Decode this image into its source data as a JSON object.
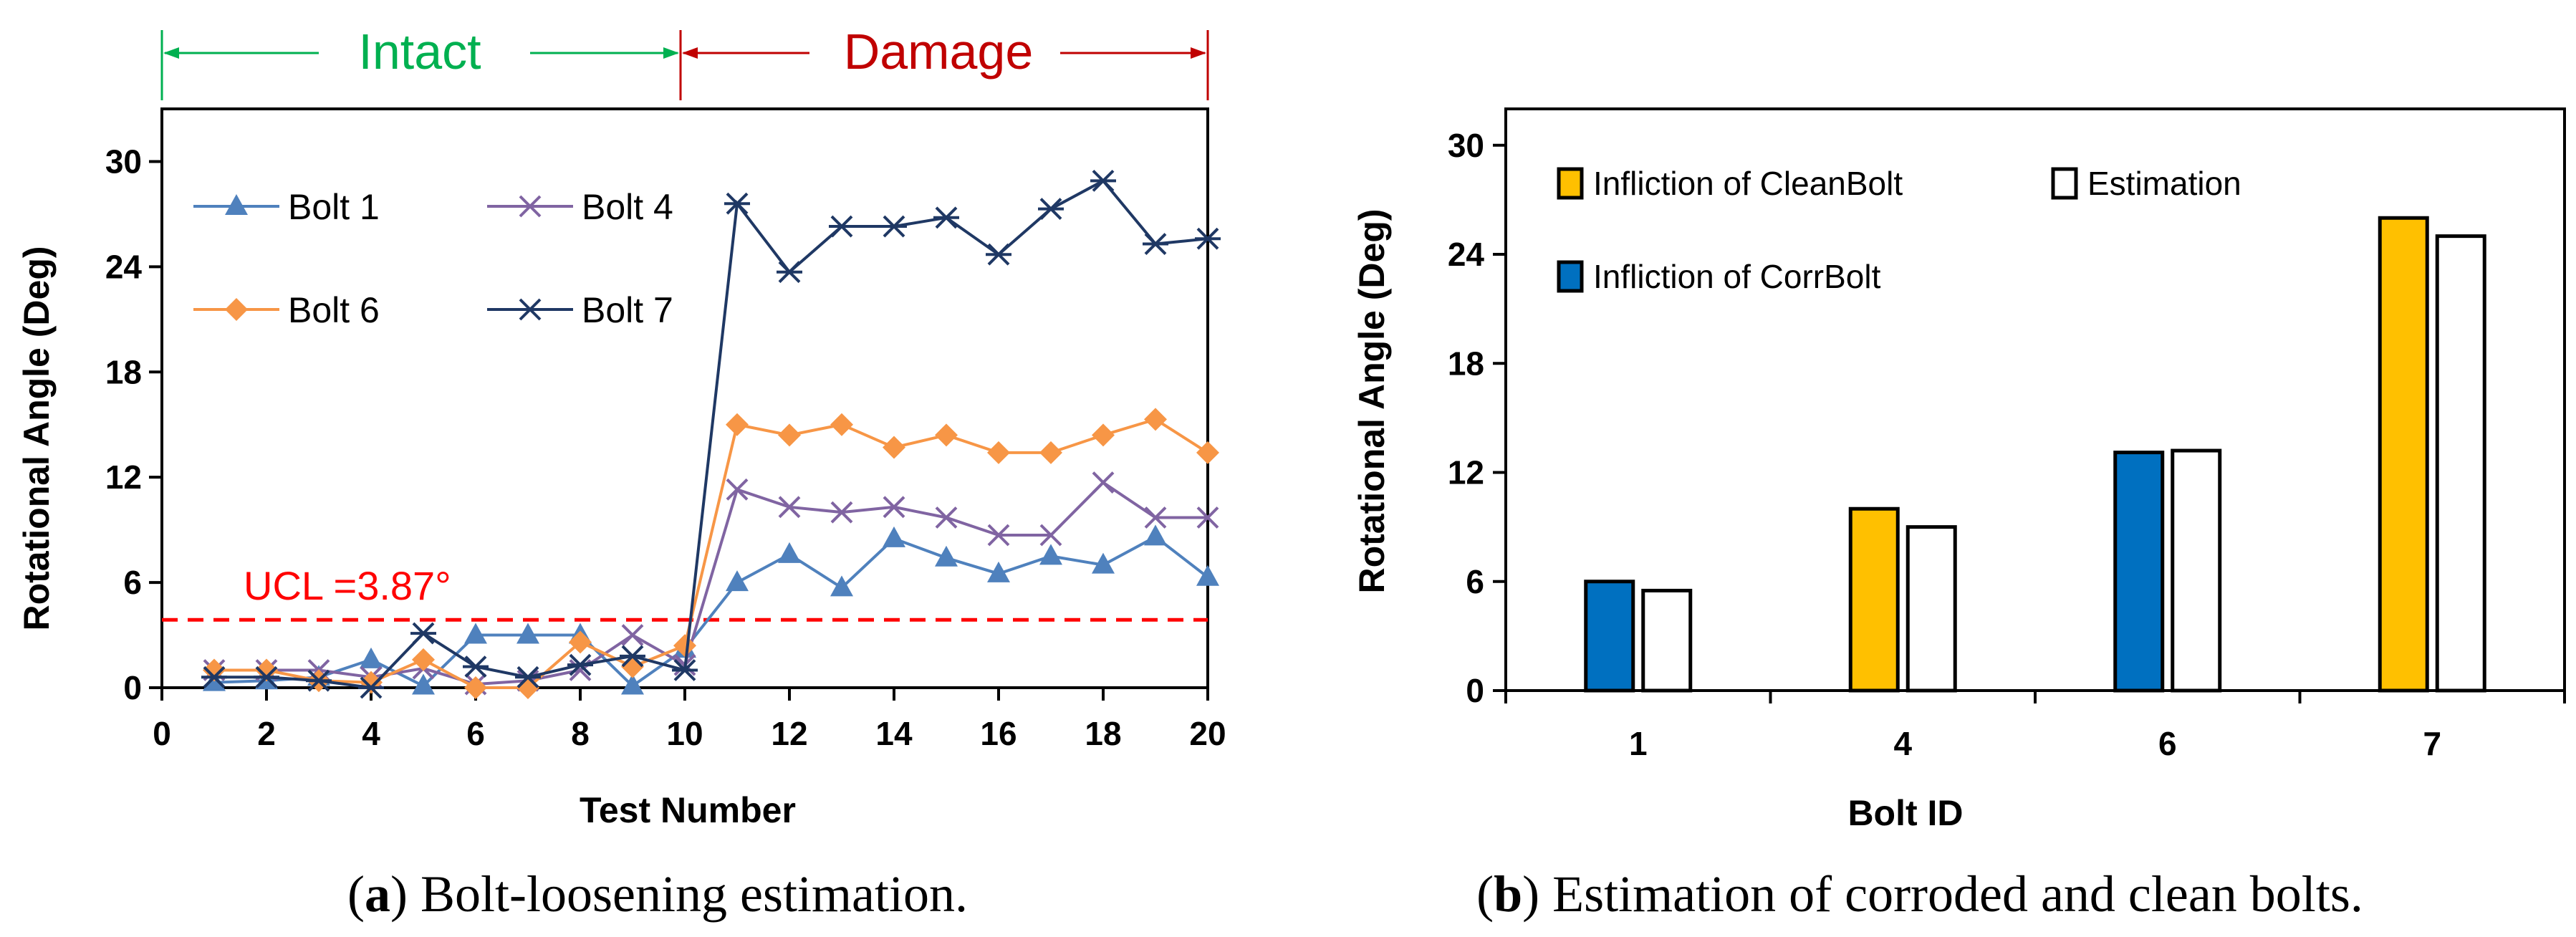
{
  "phases": {
    "intact_label": "Intact",
    "damage_label": "Damage",
    "intact_color": "#00b050",
    "damage_color": "#c00000"
  },
  "captions": {
    "a_letter": "a",
    "a_text": " Bolt-loosening estimation.",
    "b_letter": "b",
    "b_text": " Estimation of corroded and clean bolts."
  },
  "chart_data": [
    {
      "type": "line",
      "title": "",
      "xlabel": "Test Number",
      "ylabel": "Rotational Angle (Deg)",
      "xlim": [
        0,
        20
      ],
      "ylim": [
        0,
        33
      ],
      "xticks": [
        0,
        2,
        4,
        6,
        8,
        10,
        12,
        14,
        16,
        18,
        20
      ],
      "yticks": [
        0,
        6,
        12,
        18,
        24,
        30
      ],
      "grid": false,
      "legend_position": "top-left",
      "threshold": {
        "label": "UCL =3.87°",
        "value": 3.87,
        "color": "#ff0000"
      },
      "x": [
        1,
        2,
        3,
        4,
        5,
        6,
        7,
        8,
        9,
        10,
        11,
        12,
        13,
        14,
        15,
        16,
        17,
        18,
        19,
        20
      ],
      "series": [
        {
          "name": "Bolt 1",
          "marker": "triangle",
          "color": "#4f81bd",
          "values": [
            0.3,
            0.4,
            0.6,
            1.6,
            0.1,
            3.0,
            3.0,
            3.0,
            0.1,
            2.2,
            6.0,
            7.6,
            5.7,
            8.5,
            7.4,
            6.5,
            7.5,
            7.0,
            8.6,
            6.3
          ]
        },
        {
          "name": "Bolt 4",
          "marker": "x",
          "color": "#8064a2",
          "values": [
            1.0,
            1.0,
            1.0,
            0.6,
            1.1,
            0.2,
            0.4,
            1.0,
            3.0,
            1.3,
            11.3,
            10.3,
            10.0,
            10.3,
            9.7,
            8.7,
            8.7,
            11.7,
            9.7,
            9.7
          ]
        },
        {
          "name": "Bolt 6",
          "marker": "diamond",
          "color": "#f79646",
          "values": [
            1.0,
            1.0,
            0.4,
            0.3,
            1.6,
            0.0,
            0.0,
            2.6,
            1.2,
            2.4,
            15.0,
            14.4,
            15.0,
            13.7,
            14.4,
            13.4,
            13.4,
            14.4,
            15.3,
            13.4
          ]
        },
        {
          "name": "Bolt 7",
          "marker": "asterisk",
          "color": "#1f3864",
          "values": [
            0.6,
            0.6,
            0.4,
            0.0,
            3.1,
            1.2,
            0.6,
            1.3,
            1.8,
            1.0,
            27.6,
            23.7,
            26.3,
            26.3,
            26.8,
            24.7,
            27.3,
            28.9,
            25.3,
            25.6
          ]
        }
      ]
    },
    {
      "type": "bar",
      "title": "",
      "xlabel": "Bolt ID",
      "ylabel": "Rotational Angle (Deg)",
      "ylim": [
        0,
        32
      ],
      "yticks": [
        0,
        6,
        12,
        18,
        24,
        30
      ],
      "grid": false,
      "legend_position": "top-left",
      "categories": [
        "1",
        "4",
        "6",
        "7"
      ],
      "legend": [
        {
          "name": "Infliction  of CleanBolt",
          "color": "#ffc000"
        },
        {
          "name": "Estimation",
          "color": "#ffffff"
        },
        {
          "name": "Infliction of CorrBolt",
          "color": "#0070c0"
        }
      ],
      "series": [
        {
          "name": "Infliction",
          "values": [
            6.0,
            10.0,
            13.1,
            26.0
          ],
          "colors": [
            "#0070c0",
            "#ffc000",
            "#0070c0",
            "#ffc000"
          ]
        },
        {
          "name": "Estimation",
          "values": [
            5.5,
            9.0,
            13.2,
            25.0
          ],
          "colors": [
            "#ffffff",
            "#ffffff",
            "#ffffff",
            "#ffffff"
          ]
        }
      ]
    }
  ]
}
